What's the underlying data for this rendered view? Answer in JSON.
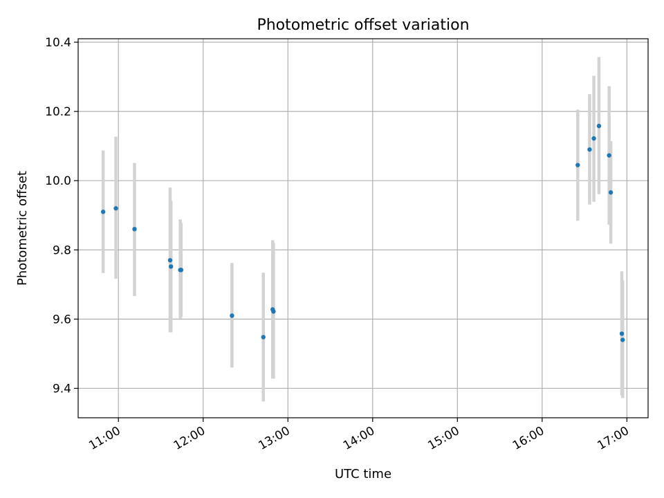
{
  "chart_data": {
    "type": "scatter",
    "title": "Photometric offset variation",
    "xlabel": "UTC time",
    "ylabel": "Photometric offset",
    "x_unit": "UTC hour",
    "xlim": [
      10.525,
      17.25
    ],
    "ylim": [
      9.315,
      10.41
    ],
    "grid": true,
    "marker_color": "#1f77b4",
    "errorbar_color": "#d3d3d3",
    "x_ticks": [
      {
        "value": 11,
        "label": "11:00"
      },
      {
        "value": 12,
        "label": "12:00"
      },
      {
        "value": 13,
        "label": "13:00"
      },
      {
        "value": 14,
        "label": "14:00"
      },
      {
        "value": 15,
        "label": "15:00"
      },
      {
        "value": 16,
        "label": "16:00"
      },
      {
        "value": 17,
        "label": "17:00"
      }
    ],
    "y_ticks": [
      {
        "value": 9.4,
        "label": "9.4"
      },
      {
        "value": 9.6,
        "label": "9.6"
      },
      {
        "value": 9.8,
        "label": "9.8"
      },
      {
        "value": 10.0,
        "label": "10.0"
      },
      {
        "value": 10.2,
        "label": "10.2"
      },
      {
        "value": 10.4,
        "label": "10.4"
      }
    ],
    "points": [
      {
        "x": 10.82,
        "y": 9.91,
        "low": 9.733,
        "high": 10.087
      },
      {
        "x": 10.97,
        "y": 9.92,
        "low": 9.717,
        "high": 10.127
      },
      {
        "x": 11.19,
        "y": 9.86,
        "low": 9.667,
        "high": 10.051
      },
      {
        "x": 11.61,
        "y": 9.77,
        "low": 9.562,
        "high": 9.98
      },
      {
        "x": 11.62,
        "y": 9.752,
        "low": 9.562,
        "high": 9.942
      },
      {
        "x": 11.73,
        "y": 9.742,
        "low": 9.602,
        "high": 9.888
      },
      {
        "x": 11.74,
        "y": 9.742,
        "low": 9.606,
        "high": 9.878
      },
      {
        "x": 12.34,
        "y": 9.61,
        "low": 9.46,
        "high": 9.762
      },
      {
        "x": 12.71,
        "y": 9.548,
        "low": 9.362,
        "high": 9.734
      },
      {
        "x": 12.82,
        "y": 9.628,
        "low": 9.428,
        "high": 9.828
      },
      {
        "x": 12.83,
        "y": 9.622,
        "low": 9.428,
        "high": 9.82
      },
      {
        "x": 16.42,
        "y": 10.045,
        "low": 9.884,
        "high": 10.205
      },
      {
        "x": 16.56,
        "y": 10.09,
        "low": 9.931,
        "high": 10.25
      },
      {
        "x": 16.61,
        "y": 10.122,
        "low": 9.939,
        "high": 10.303
      },
      {
        "x": 16.67,
        "y": 10.158,
        "low": 9.961,
        "high": 10.357
      },
      {
        "x": 16.79,
        "y": 10.073,
        "low": 9.873,
        "high": 10.273
      },
      {
        "x": 16.81,
        "y": 9.966,
        "low": 9.818,
        "high": 10.114
      },
      {
        "x": 16.94,
        "y": 9.558,
        "low": 9.38,
        "high": 9.738
      },
      {
        "x": 16.95,
        "y": 9.54,
        "low": 9.372,
        "high": 9.712
      }
    ]
  }
}
